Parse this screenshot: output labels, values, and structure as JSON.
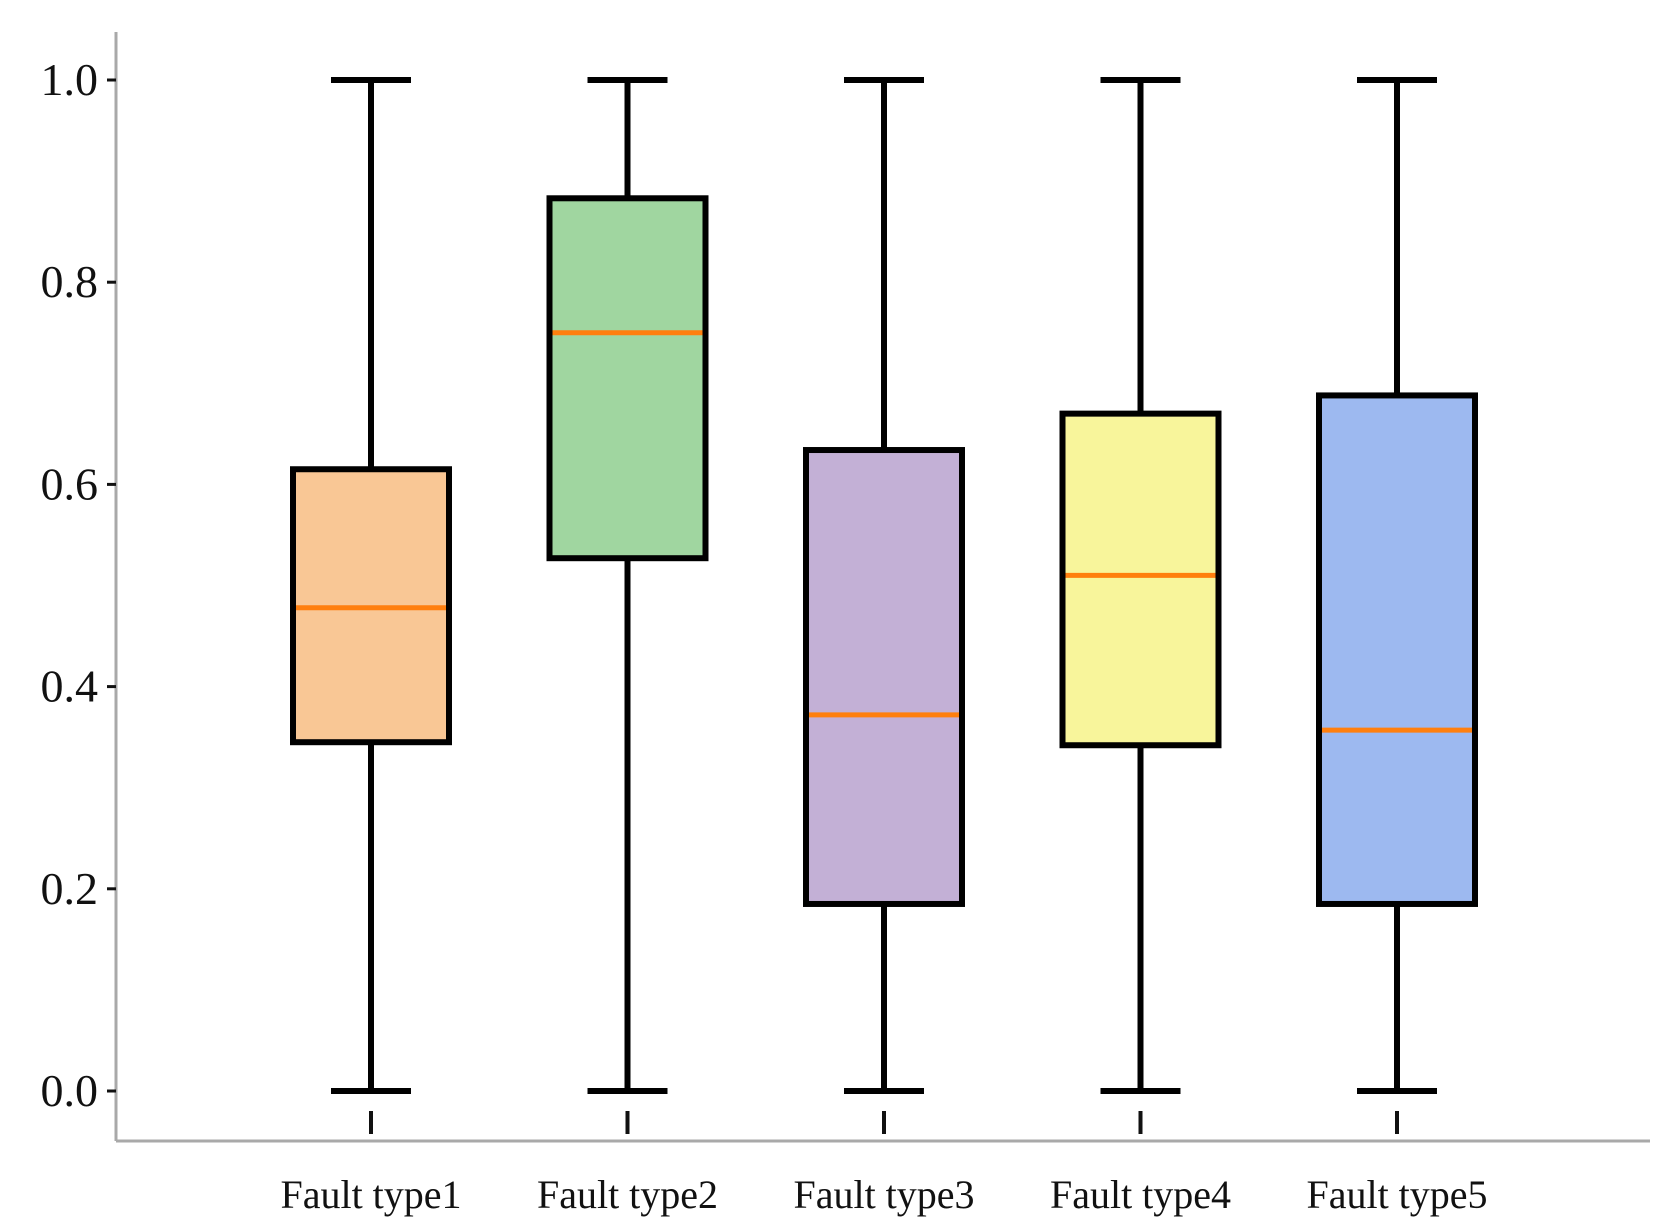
{
  "chart_data": {
    "type": "boxplot",
    "title": "",
    "xlabel": "",
    "ylabel": "",
    "ylim": [
      -0.05,
      1.05
    ],
    "yticks": [
      0.0,
      0.2,
      0.4,
      0.6,
      0.8,
      1.0
    ],
    "ytick_labels": [
      "0.0",
      "0.2",
      "0.4",
      "0.6",
      "0.8",
      "1.0"
    ],
    "grid": false,
    "categories": [
      "Fault type1",
      "Fault type2",
      "Fault type3",
      "Fault type4",
      "Fault type5"
    ],
    "boxes": [
      {
        "name": "Fault type1",
        "whisker_low": 0.0,
        "q1": 0.345,
        "median": 0.478,
        "q3": 0.615,
        "whisker_high": 1.0,
        "color": "#F9C795"
      },
      {
        "name": "Fault type2",
        "whisker_low": 0.0,
        "q1": 0.527,
        "median": 0.75,
        "q3": 0.883,
        "whisker_high": 1.0,
        "color": "#A0D6A0"
      },
      {
        "name": "Fault type3",
        "whisker_low": 0.0,
        "q1": 0.185,
        "median": 0.372,
        "q3": 0.634,
        "whisker_high": 1.0,
        "color": "#C3B0D6"
      },
      {
        "name": "Fault type4",
        "whisker_low": 0.0,
        "q1": 0.342,
        "median": 0.51,
        "q3": 0.67,
        "whisker_high": 1.0,
        "color": "#F8F59B"
      },
      {
        "name": "Fault type5",
        "whisker_low": 0.0,
        "q1": 0.185,
        "median": 0.357,
        "q3": 0.688,
        "whisker_high": 1.0,
        "color": "#9DB9F0"
      }
    ],
    "median_color": "#FF7F0E",
    "box_edge_color": "#000000",
    "axis_color": "#A9A9A9"
  }
}
